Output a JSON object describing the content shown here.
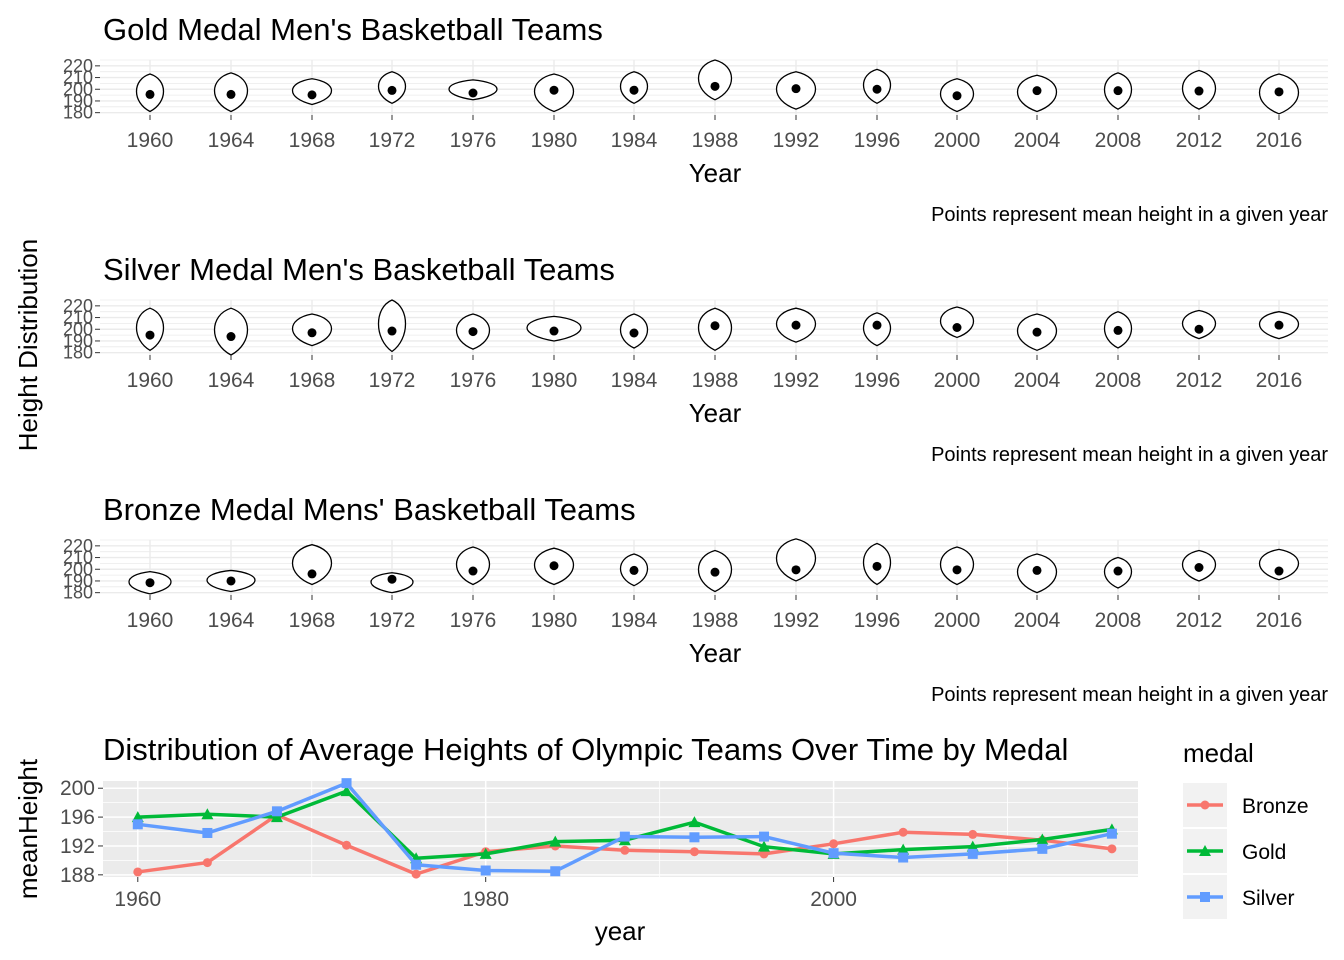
{
  "shared_ylabel": "Height Distribution",
  "chart_data": [
    {
      "type": "violin",
      "title": "Gold Medal Men's Basketball Teams",
      "xlabel": "Year",
      "ylabel": "",
      "caption": "Points represent mean height in a given year",
      "categories": [
        "1960",
        "1964",
        "1968",
        "1972",
        "1976",
        "1980",
        "1984",
        "1988",
        "1992",
        "1996",
        "2000",
        "2004",
        "2008",
        "2012",
        "2016"
      ],
      "ylim": [
        178,
        225
      ],
      "yticks": [
        "180",
        "190",
        "200",
        "210",
        "220"
      ],
      "mean": [
        195.6,
        195.6,
        195.2,
        199.0,
        196.8,
        199.2,
        199.2,
        202.5,
        200.5,
        200.0,
        194.5,
        198.8,
        198.8,
        198.5,
        197.8
      ],
      "lo": [
        181,
        181,
        187,
        188,
        191,
        181,
        188,
        191,
        183,
        188,
        181,
        181,
        183,
        183,
        179
      ],
      "hi": [
        213,
        214,
        209,
        215,
        208,
        213,
        215,
        225,
        215,
        217,
        209,
        212,
        214,
        216,
        213
      ]
    },
    {
      "type": "violin",
      "title": "Silver Medal Men's Basketball Teams",
      "xlabel": "Year",
      "ylabel": "",
      "caption": "Points represent mean height in a given year",
      "categories": [
        "1960",
        "1964",
        "1968",
        "1972",
        "1976",
        "1980",
        "1984",
        "1988",
        "1992",
        "1996",
        "2000",
        "2004",
        "2008",
        "2012",
        "2016"
      ],
      "ylim": [
        178,
        225
      ],
      "yticks": [
        "180",
        "190",
        "200",
        "210",
        "220"
      ],
      "mean": [
        195.0,
        193.8,
        197.0,
        198.5,
        198.0,
        198.5,
        196.8,
        203.0,
        203.5,
        203.5,
        201.5,
        197.5,
        199.0,
        200.0,
        203.5
      ],
      "lo": [
        182,
        178,
        186,
        181,
        183,
        190,
        184,
        182,
        189,
        186,
        193,
        182,
        184,
        192,
        192
      ],
      "hi": [
        218,
        218,
        213,
        225,
        213,
        211,
        213,
        218,
        218,
        214,
        219,
        213,
        215,
        216,
        215
      ]
    },
    {
      "type": "violin",
      "title": "Bronze Medal Mens' Basketball Teams",
      "xlabel": "Year",
      "ylabel": "",
      "caption": "Points represent mean height in a given year",
      "categories": [
        "1960",
        "1964",
        "1968",
        "1972",
        "1976",
        "1980",
        "1984",
        "1988",
        "1992",
        "1996",
        "2000",
        "2004",
        "2008",
        "2012",
        "2016"
      ],
      "ylim": [
        178,
        225
      ],
      "yticks": [
        "180",
        "190",
        "200",
        "210",
        "220"
      ],
      "mean": [
        188.5,
        190.0,
        196.0,
        191.5,
        198.5,
        203.0,
        199.0,
        197.5,
        199.5,
        202.5,
        199.5,
        199.0,
        198.5,
        201.5,
        198.5
      ],
      "lo": [
        179,
        181,
        187,
        180,
        187,
        187,
        186,
        181,
        190,
        187,
        187,
        180,
        184,
        190,
        191
      ],
      "hi": [
        198,
        199,
        221,
        197,
        219,
        218,
        213,
        216,
        226,
        222,
        219,
        213,
        210,
        216,
        217
      ]
    },
    {
      "type": "line",
      "title": "Distribution of Average Heights of Olympic Teams Over Time by Medal",
      "xlabel": "year",
      "ylabel": "meanHeight",
      "xlim": [
        1958,
        2017.5
      ],
      "ylim": [
        187.7,
        201
      ],
      "xticks": [
        "1960",
        "1980",
        "2000"
      ],
      "yticks": [
        "188",
        "192",
        "196",
        "200"
      ],
      "legend_title": "medal",
      "legend_position": "right",
      "x": [
        1960,
        1964,
        1968,
        1972,
        1976,
        1980,
        1984,
        1988,
        1992,
        1996,
        2000,
        2004,
        2008,
        2012,
        2016
      ],
      "series": [
        {
          "name": "Bronze",
          "color": "#F8766D",
          "marker": "circle",
          "values": [
            188.4,
            189.7,
            196.3,
            192.1,
            188.1,
            191.2,
            192.0,
            191.4,
            191.2,
            190.9,
            192.3,
            193.9,
            193.6,
            192.8,
            191.6
          ]
        },
        {
          "name": "Gold",
          "color": "#00BA38",
          "marker": "triangle",
          "values": [
            196.0,
            196.4,
            196.0,
            199.6,
            190.3,
            190.9,
            192.6,
            192.8,
            195.3,
            191.9,
            190.9,
            191.5,
            191.9,
            192.9,
            194.3
          ]
        },
        {
          "name": "Silver",
          "color": "#619CFF",
          "marker": "square",
          "values": [
            195.0,
            193.8,
            196.8,
            200.7,
            189.4,
            188.6,
            188.5,
            193.3,
            193.2,
            193.3,
            191.0,
            190.4,
            190.9,
            191.6,
            193.7
          ]
        }
      ]
    }
  ]
}
